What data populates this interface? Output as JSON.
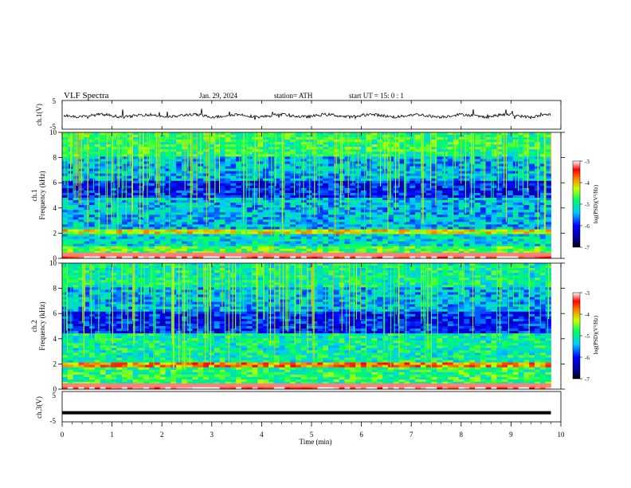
{
  "header": {
    "title": "VLF  Spectra",
    "date": "Jan. 29, 2024",
    "station": "station= ATH",
    "start": "start  UT  =   15: 0  : 1"
  },
  "chart_data": [
    {
      "type": "line",
      "name": "ch1-waveform",
      "ylabel": "ch.1(V)",
      "ylim": [
        -5,
        5
      ],
      "yticks": [
        "5",
        "-5"
      ],
      "xlim": [
        0,
        10
      ],
      "description_level": "noisy waveform near -0.3 V with spikes",
      "color": "#000000"
    },
    {
      "type": "heatmap",
      "name": "ch1-spectrogram",
      "ylabel": "ch.1\nFrequency (kHz)",
      "ylabel_lines": [
        "ch.1",
        "Frequency (kHz)"
      ],
      "ylim": [
        0,
        10
      ],
      "yticks": [
        "0",
        "2",
        "4",
        "6",
        "8",
        "10"
      ],
      "xlim": [
        0,
        9.8
      ],
      "colorbar": {
        "label": "log(PSD)(V²/Hz)",
        "range": [
          -7,
          -3
        ],
        "ticks": [
          "-3",
          "-4",
          "-5",
          "-6",
          "-7"
        ]
      },
      "bands": [
        {
          "from": 0.0,
          "to": 0.3,
          "level": 0.95
        },
        {
          "from": 0.3,
          "to": 1.0,
          "level": 0.6
        },
        {
          "from": 1.0,
          "to": 2.0,
          "level": 0.45
        },
        {
          "from": 2.0,
          "to": 2.4,
          "level": 0.7
        },
        {
          "from": 2.4,
          "to": 4.8,
          "level": 0.4
        },
        {
          "from": 4.8,
          "to": 6.2,
          "level": 0.25
        },
        {
          "from": 6.2,
          "to": 8.0,
          "level": 0.4
        },
        {
          "from": 8.0,
          "to": 10.0,
          "level": 0.55
        }
      ]
    },
    {
      "type": "heatmap",
      "name": "ch2-spectrogram",
      "ylabel": "ch.2\nFrequency (kHz)",
      "ylabel_lines": [
        "ch.2",
        "Frequency (kHz)"
      ],
      "ylim": [
        0,
        10
      ],
      "yticks": [
        "0",
        "2",
        "4",
        "6",
        "8",
        "10"
      ],
      "xlim": [
        0,
        9.8
      ],
      "colorbar": {
        "label": "log(PSD)(V²/Hz)",
        "range": [
          -7,
          -3
        ],
        "ticks": [
          "-3",
          "-4",
          "-5",
          "-6",
          "-7"
        ]
      },
      "bands": [
        {
          "from": 0.0,
          "to": 0.3,
          "level": 0.95
        },
        {
          "from": 0.3,
          "to": 1.8,
          "level": 0.55
        },
        {
          "from": 1.8,
          "to": 2.2,
          "level": 0.8
        },
        {
          "from": 2.2,
          "to": 4.5,
          "level": 0.5
        },
        {
          "from": 4.5,
          "to": 6.2,
          "level": 0.25
        },
        {
          "from": 6.2,
          "to": 8.0,
          "level": 0.4
        },
        {
          "from": 8.0,
          "to": 10.0,
          "level": 0.5
        }
      ]
    },
    {
      "type": "line",
      "name": "ch3-waveform",
      "ylabel": "ch.3(V)",
      "ylim": [
        -5,
        5
      ],
      "yticks": [
        "5",
        "-5"
      ],
      "xlim": [
        0,
        10
      ],
      "color": "#000000",
      "x": [
        0,
        9.8
      ],
      "y": [
        -2,
        -2
      ]
    }
  ],
  "xaxis": {
    "label": "Time  (min)",
    "ticks": [
      "0",
      "1",
      "2",
      "3",
      "4",
      "5",
      "6",
      "7",
      "8",
      "9",
      "10"
    ],
    "range": [
      0,
      10
    ]
  }
}
